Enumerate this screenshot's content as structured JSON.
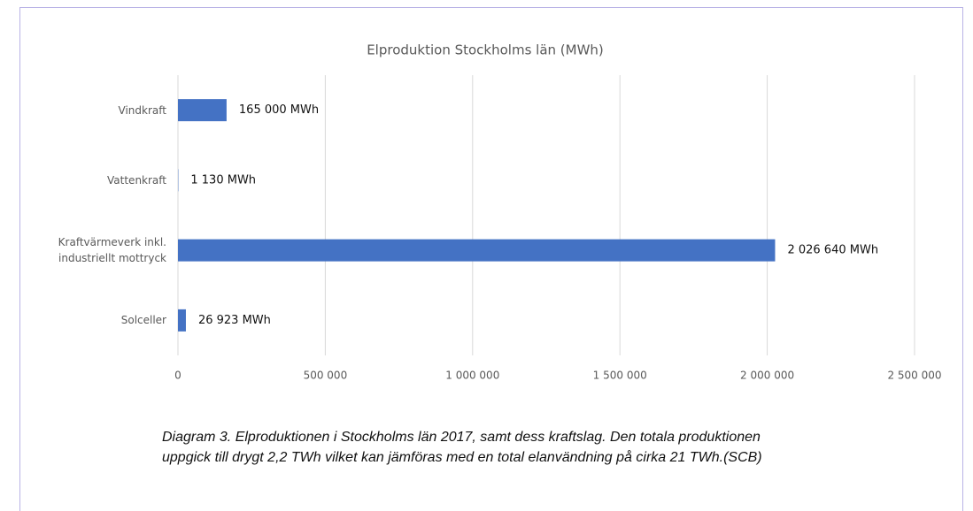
{
  "chart_data": {
    "type": "bar",
    "orientation": "horizontal",
    "title": "Elproduktion Stockholms län (MWh)",
    "categories": [
      "Vindkraft",
      "Vattenkraft",
      "Kraftvärmeverk inkl. industriellt mottryck",
      "Solceller"
    ],
    "values": [
      165000,
      1130,
      2026640,
      26923
    ],
    "value_labels": [
      "165 000 MWh",
      "1 130 MWh",
      "2 026 640 MWh",
      "26 923 MWh"
    ],
    "color": "#4472c4",
    "xlim": [
      0,
      2500000
    ],
    "xticks": [
      0,
      {
        "value": 500000,
        "label": "500 000"
      },
      {
        "value": 1000000,
        "label": "1 000 000"
      },
      {
        "value": 1500000,
        "label": "1 500 000"
      },
      {
        "value": 2000000,
        "label": "2 000 000"
      },
      {
        "value": 2500000,
        "label": "2 500 000"
      }
    ],
    "grid": true
  },
  "caption": "Diagram 3. Elproduktionen i Stockholms län 2017, samt dess kraftslag. Den totala produktionen uppgick till drygt 2,2 TWh vilket kan jämföras med en total elanvändning på cirka 21 TWh.(SCB)"
}
